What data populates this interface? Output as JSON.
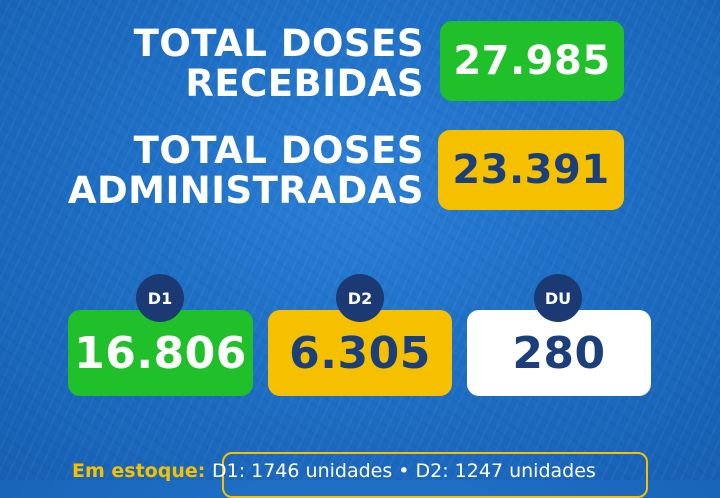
{
  "received": {
    "label_line1": "TOTAL DOSES",
    "label_line2": "RECEBIDAS",
    "value": "27.985",
    "color": "#1fc02a"
  },
  "administered": {
    "label_line1": "TOTAL DOSES",
    "label_line2": "ADMINISTRADAS",
    "value": "23.391",
    "color": "#f5c000"
  },
  "doses": [
    {
      "badge": "D1",
      "value": "16.806",
      "color": "#1fc02a"
    },
    {
      "badge": "D2",
      "value": "6.305",
      "color": "#f5c000"
    },
    {
      "badge": "DU",
      "value": "280",
      "color": "#ffffff"
    }
  ],
  "stock": {
    "label": "Em estoque:",
    "text": "D1: 1746 unidades • D2: 1247 unidades"
  },
  "colors": {
    "background": "#1e6fc6",
    "badge": "#1b3a73",
    "dark_text": "#1a3f7a"
  }
}
